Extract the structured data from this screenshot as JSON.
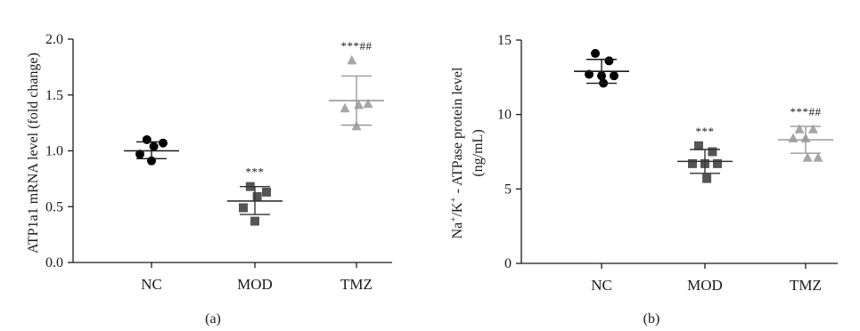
{
  "chart_data": [
    {
      "type": "scatter",
      "panel_label": "(a)",
      "ylabel": "ATP1a1 mRNA level (fold change)",
      "ylim": [
        0,
        2.0
      ],
      "yticks": [
        "0.0",
        "0.5",
        "1.0",
        "1.5",
        "2.0"
      ],
      "categories": [
        "NC",
        "MOD",
        "TMZ"
      ],
      "grid": false,
      "series": [
        {
          "category": "NC",
          "marker": "circle",
          "color": "#000000",
          "points": [
            1.1,
            1.07,
            1.04,
            0.97,
            0.91
          ],
          "mean": 1.0,
          "sd_upper": 1.08,
          "sd_lower": 0.93,
          "annotation": ""
        },
        {
          "category": "MOD",
          "marker": "square",
          "color": "#555555",
          "points": [
            0.68,
            0.63,
            0.59,
            0.49,
            0.37
          ],
          "mean": 0.55,
          "sd_upper": 0.68,
          "sd_lower": 0.43,
          "annotation": "***"
        },
        {
          "category": "TMZ",
          "marker": "triangle",
          "color": "#a6a6a6",
          "points": [
            1.81,
            1.42,
            1.41,
            1.38,
            1.22
          ],
          "mean": 1.45,
          "sd_upper": 1.67,
          "sd_lower": 1.23,
          "annotation": "***##"
        }
      ]
    },
    {
      "type": "scatter",
      "panel_label": "(b)",
      "ylabel_line1": "Na+/K+ - ATPase protein level",
      "ylabel_line2": "(ng/mL)",
      "ylim": [
        0,
        15
      ],
      "yticks": [
        "0",
        "5",
        "10",
        "15"
      ],
      "categories": [
        "NC",
        "MOD",
        "TMZ"
      ],
      "grid": false,
      "series": [
        {
          "category": "NC",
          "marker": "circle",
          "color": "#000000",
          "points": [
            14.1,
            13.6,
            12.7,
            12.6,
            12.6,
            12.1
          ],
          "mean": 12.9,
          "sd_upper": 13.7,
          "sd_lower": 12.1,
          "annotation": ""
        },
        {
          "category": "MOD",
          "marker": "square",
          "color": "#555555",
          "points": [
            7.9,
            7.5,
            6.7,
            6.7,
            6.7,
            5.7
          ],
          "mean": 6.85,
          "sd_upper": 7.65,
          "sd_lower": 6.05,
          "annotation": "***"
        },
        {
          "category": "TMZ",
          "marker": "triangle",
          "color": "#a6a6a6",
          "points": [
            9.0,
            9.0,
            8.4,
            8.4,
            7.1,
            7.1
          ],
          "mean": 8.3,
          "sd_upper": 9.2,
          "sd_lower": 7.4,
          "annotation": "***##"
        }
      ]
    }
  ]
}
